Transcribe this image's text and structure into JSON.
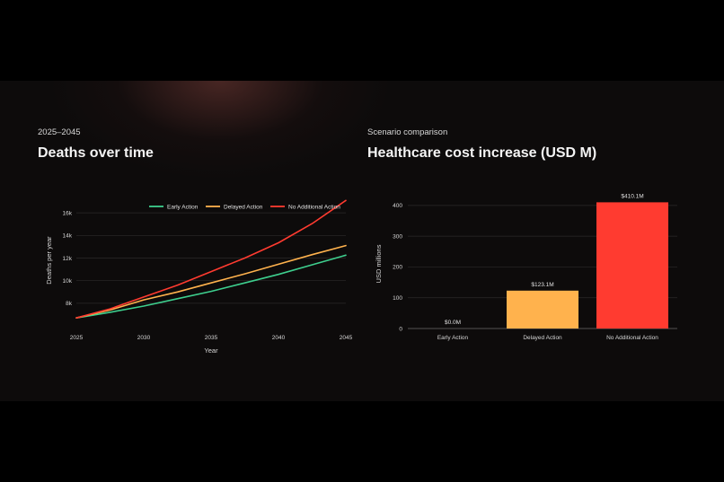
{
  "line_chart": {
    "kicker": "2025–2045",
    "title": "Deaths over time"
  },
  "bar_chart": {
    "kicker": "Scenario comparison",
    "title": "Healthcare cost increase (USD M)"
  },
  "chart_data": [
    {
      "type": "line",
      "title": "Deaths over time",
      "xlabel": "Year",
      "ylabel": "Deaths per year",
      "x": [
        2025,
        2027.5,
        2030,
        2032.5,
        2035,
        2037.5,
        2040,
        2042.5,
        2045
      ],
      "xlim": [
        2025,
        2045
      ],
      "ylim": [
        6400,
        17200
      ],
      "x_ticks": [
        2025,
        2030,
        2035,
        2040,
        2045
      ],
      "x_tick_labels": [
        "2025",
        "2030",
        "2035",
        "2040",
        "2045"
      ],
      "y_ticks": [
        8000,
        10000,
        12000,
        14000,
        16000
      ],
      "y_tick_labels": [
        "8k",
        "10k",
        "12k",
        "14k",
        "16k"
      ],
      "legend_position": "top-right",
      "grid": true,
      "series": [
        {
          "name": "Early Action",
          "color": "#3ecf8e",
          "values": [
            6700,
            7200,
            7750,
            8400,
            9050,
            9800,
            10550,
            11400,
            12250
          ]
        },
        {
          "name": "Delayed Action",
          "color": "#ffb24d",
          "values": [
            6700,
            7400,
            8300,
            9000,
            9800,
            10600,
            11450,
            12300,
            13100
          ]
        },
        {
          "name": "No Additional Action",
          "color": "#ff3b30",
          "values": [
            6700,
            7500,
            8550,
            9600,
            10800,
            12000,
            13350,
            15050,
            17100
          ]
        }
      ]
    },
    {
      "type": "bar",
      "title": "Healthcare cost increase (USD M)",
      "xlabel": "",
      "ylabel": "USD millions",
      "ylim": [
        0,
        420
      ],
      "y_ticks": [
        0,
        100,
        200,
        300,
        400
      ],
      "y_tick_labels": [
        "0",
        "100",
        "200",
        "300",
        "400"
      ],
      "grid": true,
      "categories": [
        "Early Action",
        "Delayed Action",
        "No Additional Action"
      ],
      "values": [
        0.0,
        123.1,
        410.1
      ],
      "data_labels": [
        "$0.0M",
        "$123.1M",
        "$410.1M"
      ],
      "colors": [
        "#3ecf8e",
        "#ffb24d",
        "#ff3b30"
      ]
    }
  ]
}
